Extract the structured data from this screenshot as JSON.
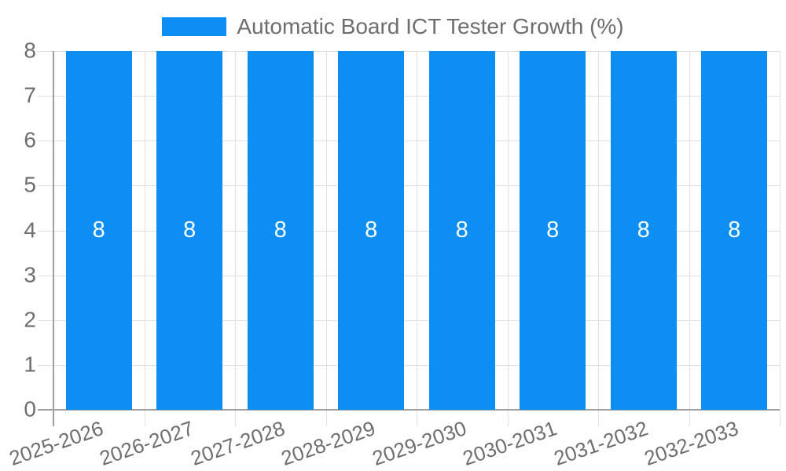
{
  "legend": {
    "position": "top",
    "items": [
      {
        "label": "Automatic Board ICT Tester Growth (%)",
        "swatch_color": "#0d8ef2"
      }
    ]
  },
  "chart_data": {
    "type": "bar",
    "title": "Automatic Board ICT Tester Growth (%)",
    "categories": [
      "2025-2026",
      "2026-2027",
      "2027-2028",
      "2028-2029",
      "2029-2030",
      "2030-2031",
      "2031-2032",
      "2032-2033"
    ],
    "values": [
      8,
      8,
      8,
      8,
      8,
      8,
      8,
      8
    ],
    "value_labels_shown": true,
    "xlabel": "",
    "ylabel": "",
    "ylim": [
      0,
      8
    ],
    "yticks": [
      0,
      1,
      2,
      3,
      4,
      5,
      6,
      7,
      8
    ],
    "grid": true,
    "legend_position": "top",
    "colors": {
      "bar": "#0d8ef2",
      "value_label": "#ffffff",
      "axis_text": "#6e6e6e",
      "grid_line": "#e0e0e0",
      "axis_line": "#a0a0a0",
      "background": "#ffffff"
    }
  }
}
